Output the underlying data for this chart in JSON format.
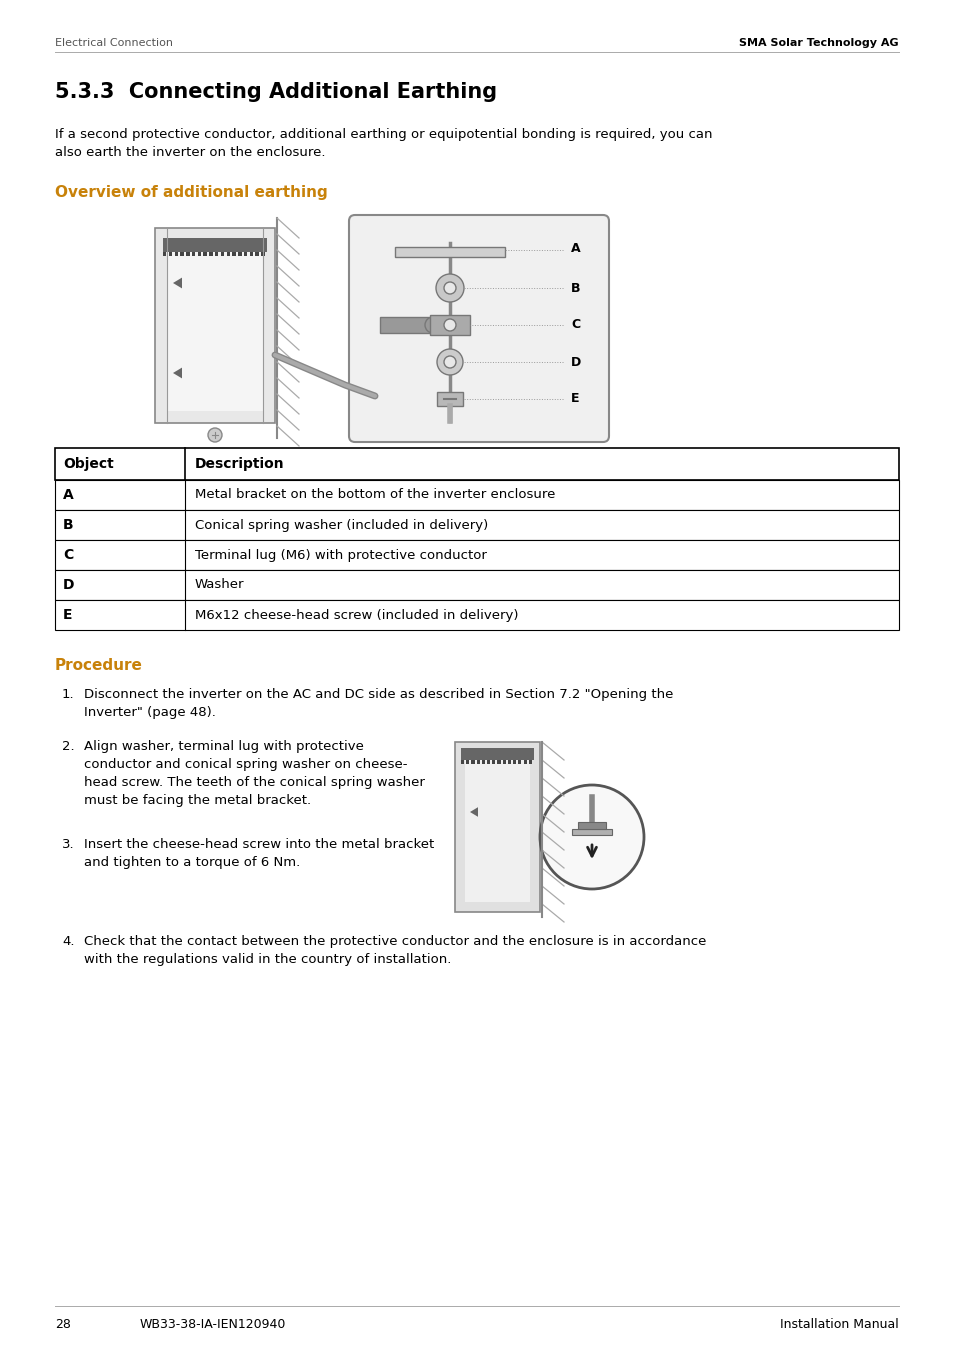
{
  "header_left": "Electrical Connection",
  "header_right": "SMA Solar Technology AG",
  "section_title": "5.3.3  Connecting Additional Earthing",
  "intro_text": "If a second protective conductor, additional earthing or equipotential bonding is required, you can\nalso earth the inverter on the enclosure.",
  "overview_title": "Overview of additional earthing",
  "table_headers": [
    "Object",
    "Description"
  ],
  "table_rows": [
    [
      "A",
      "Metal bracket on the bottom of the inverter enclosure"
    ],
    [
      "B",
      "Conical spring washer (included in delivery)"
    ],
    [
      "C",
      "Terminal lug (M6) with protective conductor"
    ],
    [
      "D",
      "Washer"
    ],
    [
      "E",
      "M6x12 cheese-head screw (included in delivery)"
    ]
  ],
  "procedure_title": "Procedure",
  "procedure_steps": [
    "Disconnect the inverter on the AC and DC side as described in Section 7.2 \"Opening the\nInverter\" (page 48).",
    "Align washer, terminal lug with protective\nconductor and conical spring washer on cheese-\nhead screw. The teeth of the conical spring washer\nmust be facing the metal bracket.",
    "Insert the cheese-head screw into the metal bracket\nand tighten to a torque of 6 Nm.",
    "Check that the contact between the protective conductor and the enclosure is in accordance\nwith the regulations valid in the country of installation."
  ],
  "footer_page": "28",
  "footer_code": "WB33-38-IA-IEN120940",
  "footer_right": "Installation Manual",
  "bg_color": "#ffffff",
  "text_color": "#000000",
  "table_border_color": "#000000"
}
